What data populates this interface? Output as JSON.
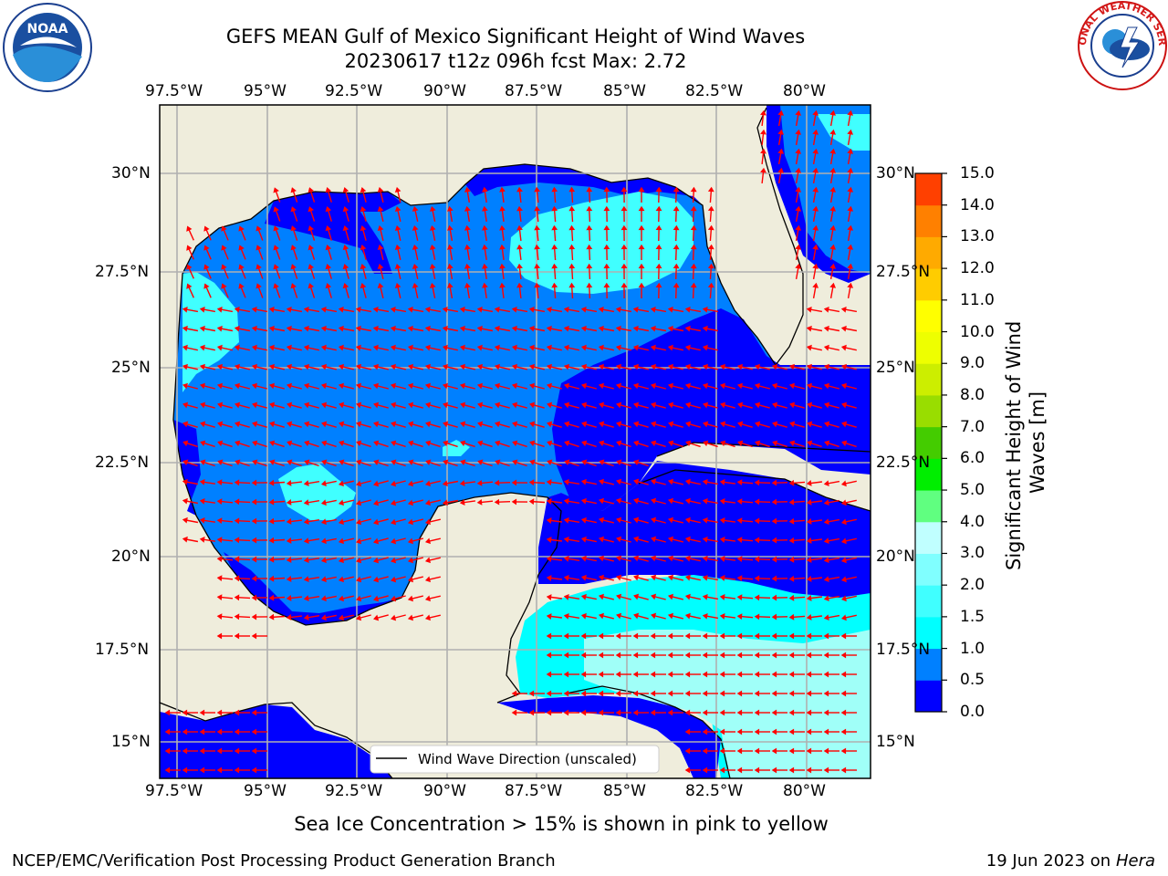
{
  "title": {
    "line1": "GEFS MEAN Gulf of Mexico Significant Height of Wind Waves",
    "line2": "20230617 t12z 096h fcst   Max: 2.72"
  },
  "logos": {
    "left": "NOAA",
    "right": "NATIONAL WEATHER SERVICE"
  },
  "axes": {
    "lon_labels": [
      "97.5°W",
      "95°W",
      "92.5°W",
      "90°W",
      "87.5°W",
      "85°W",
      "82.5°W",
      "80°W"
    ],
    "lat_labels": [
      "30°N",
      "27.5°N",
      "25°N",
      "22.5°N",
      "20°N",
      "17.5°N",
      "15°N"
    ]
  },
  "colorbar": {
    "label": "Significant Height of Wind Waves [m]",
    "ticks": [
      "15.0",
      "14.0",
      "13.0",
      "12.0",
      "11.0",
      "10.0",
      "9.0",
      "8.0",
      "7.0",
      "6.0",
      "5.0",
      "4.0",
      "3.0",
      "2.0",
      "1.5",
      "1.0",
      "0.5",
      "0.0"
    ],
    "colors": [
      "#0000ff",
      "#0080ff",
      "#00ffff",
      "#40ffff",
      "#80ffff",
      "#c0ffff",
      "#60ff80",
      "#00ee00",
      "#44cc00",
      "#99dd00",
      "#ccee00",
      "#eeff00",
      "#ffff00",
      "#ffcc00",
      "#ffaa00",
      "#ff8000",
      "#ff4000",
      "#ff0000"
    ]
  },
  "legend": {
    "label": "Wind Wave Direction (unscaled)"
  },
  "caption": "Sea Ice Concentration > 15% is shown in pink to yellow",
  "footer": {
    "left": "NCEP/EMC/Verification Post Processing Product Generation Branch",
    "date": "19 Jun 2023 on",
    "machine": "Hera"
  },
  "colors": {
    "land": "#efeddc",
    "wave_0_05": "#0000ff",
    "wave_05_1": "#0080ff",
    "wave_1_15": "#00ffff",
    "wave_15_2": "#40ffff",
    "wave_2_3": "#a0fff8",
    "arrow": "#ff0000",
    "grid": "#b0b0b0"
  }
}
